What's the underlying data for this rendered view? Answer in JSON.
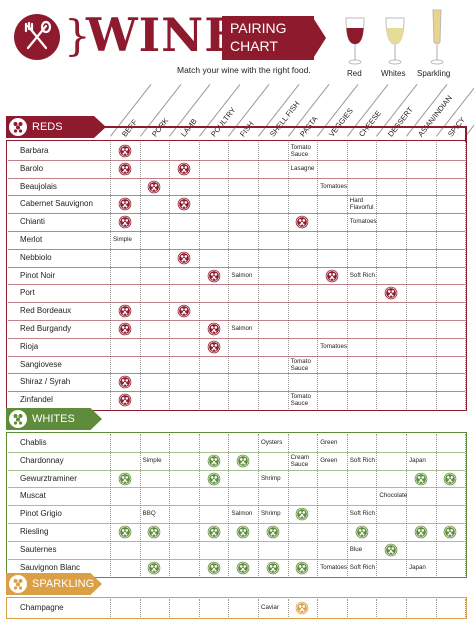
{
  "header": {
    "brace": "}",
    "wine_word": "WINE",
    "pairing_line1": "PAIRING",
    "pairing_line2": "CHART",
    "subtitle": "Match your wine with the right food."
  },
  "glasses": [
    {
      "label": "Red",
      "icon": "red-wine-glass-icon",
      "color": "#8e1b2d"
    },
    {
      "label": "Whites",
      "icon": "white-wine-glass-icon",
      "color": "#e6dc9a"
    },
    {
      "label": "Sparkling",
      "icon": "sparkling-wine-glass-icon",
      "color": "#e8d48a"
    }
  ],
  "colors": {
    "reds": "#8e1b2d",
    "whites": "#5e8c3a",
    "sparkling": "#dba045"
  },
  "categories": [
    "BEEF",
    "PORK",
    "LAMB",
    "POULTRY",
    "FISH",
    "SHELL FISH",
    "PASTA",
    "VEGGIES",
    "CHEESE",
    "DESSERT",
    "ASIAN/INDIAN",
    "SPICY"
  ],
  "sections": [
    {
      "name": "REDS",
      "key": "reds",
      "rows": [
        {
          "label": "Barbara",
          "cells": {
            "0": "mark",
            "6": "Tomato Sauce"
          }
        },
        {
          "label": "Barolo",
          "cells": {
            "0": "mark",
            "2": "mark",
            "6": "Lasagne"
          }
        },
        {
          "label": "Beaujolais",
          "cells": {
            "1": "mark",
            "7": "Tomatoes"
          }
        },
        {
          "label": "Cabernet Sauvignon",
          "cells": {
            "0": "mark",
            "2": "mark",
            "8": "Hard Flavorful"
          }
        },
        {
          "label": "Chianti",
          "cells": {
            "0": "mark",
            "6": "mark",
            "8": "Tomatoes"
          }
        },
        {
          "label": "Merlot",
          "cells": {
            "0": "Simple"
          }
        },
        {
          "label": "Nebbiolo",
          "cells": {
            "2": "mark"
          }
        },
        {
          "label": "Pinot Noir",
          "cells": {
            "3": "mark",
            "4": "Salmon",
            "7": "mark",
            "8": "Soft Rich"
          }
        },
        {
          "label": "Port",
          "cells": {
            "9": "mark"
          }
        },
        {
          "label": "Red Bordeaux",
          "cells": {
            "0": "mark",
            "2": "mark"
          }
        },
        {
          "label": "Red Burgandy",
          "cells": {
            "0": "mark",
            "3": "mark",
            "4": "Salmon"
          }
        },
        {
          "label": "Rioja",
          "cells": {
            "3": "mark",
            "7": "Tomatoes"
          }
        },
        {
          "label": "Sangiovese",
          "cells": {
            "6": "Tomato Sauce"
          }
        },
        {
          "label": "Shiraz / Syrah",
          "cells": {
            "0": "mark"
          }
        },
        {
          "label": "Zinfandel",
          "cells": {
            "0": "mark",
            "6": "Tomato Sauce"
          }
        }
      ]
    },
    {
      "name": "WHITES",
      "key": "whites",
      "rows": [
        {
          "label": "Chablis",
          "cells": {
            "5": "Oysters",
            "7": "Green"
          }
        },
        {
          "label": "Chardonnay",
          "cells": {
            "1": "Simple",
            "3": "mark",
            "4": "mark",
            "6": "Cream Sauce",
            "7": "Green",
            "8": "Soft Rich",
            "10": "Japan"
          }
        },
        {
          "label": "Gewurztraminer",
          "cells": {
            "0": "mark",
            "3": "mark",
            "5": "Shrimp",
            "10": "mark",
            "11": "mark"
          }
        },
        {
          "label": "Muscat",
          "cells": {
            "9": "Chocolate"
          }
        },
        {
          "label": "Pinot Grigio",
          "cells": {
            "1": "BBQ",
            "4": "Salmon",
            "5": "Shrimp",
            "6": "mark",
            "8": "Soft Rich"
          }
        },
        {
          "label": "Riesling",
          "cells": {
            "0": "mark",
            "1": "mark",
            "3": "mark",
            "4": "mark",
            "5": "mark",
            "8": "mark",
            "10": "mark",
            "11": "mark"
          }
        },
        {
          "label": "Sauternes",
          "cells": {
            "8": "Blue",
            "9": "mark"
          }
        },
        {
          "label": "Sauvignon Blanc",
          "cells": {
            "1": "mark",
            "3": "mark",
            "4": "mark",
            "5": "mark",
            "6": "mark",
            "7": "Tomatoes",
            "8": "Soft Rich",
            "10": "Japan"
          }
        }
      ]
    },
    {
      "name": "SPARKLING",
      "key": "sparkling",
      "rows": [
        {
          "label": "Champagne",
          "cells": {
            "5": "Caviar",
            "6": "mark"
          }
        }
      ]
    }
  ]
}
